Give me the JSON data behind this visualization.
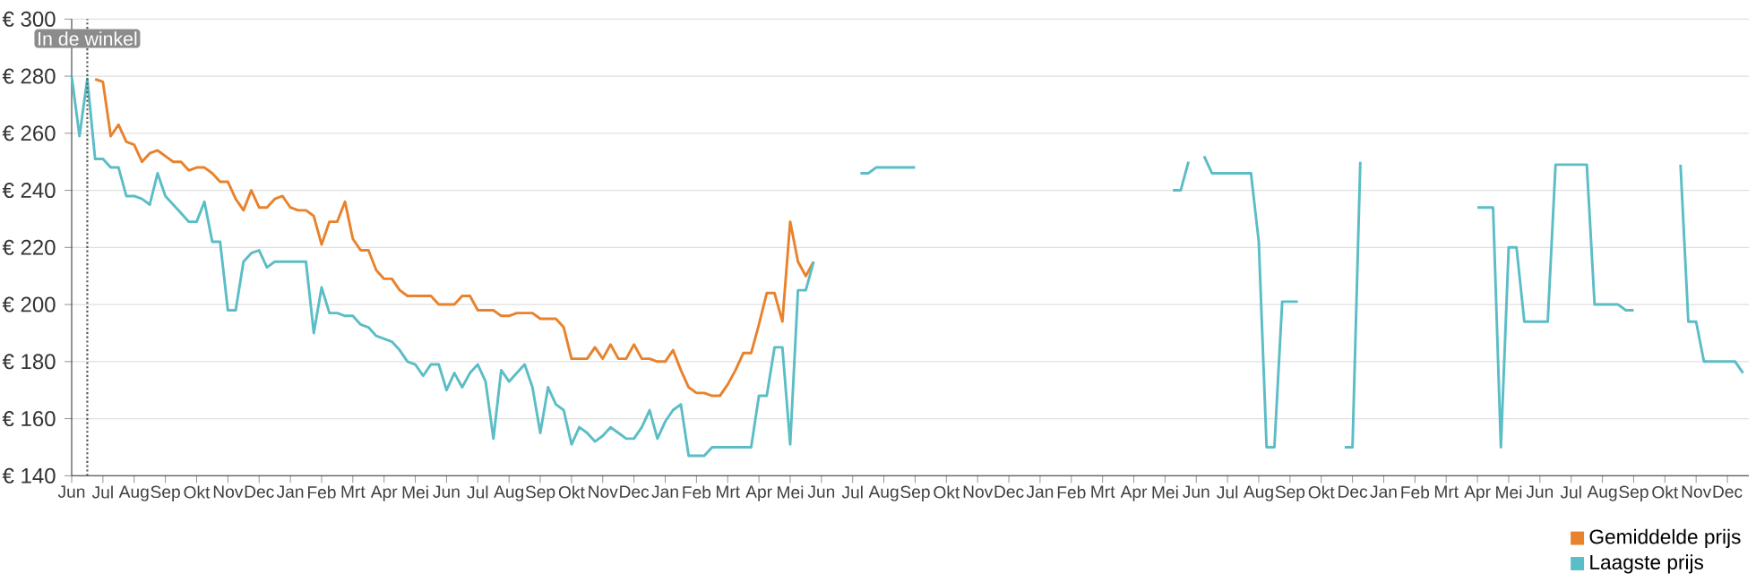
{
  "chart_data": {
    "type": "line",
    "categories": [
      "Jun",
      null,
      null,
      null,
      "Jul",
      null,
      null,
      null,
      "Aug",
      null,
      null,
      null,
      "Sep",
      null,
      null,
      null,
      "Okt",
      null,
      null,
      null,
      "Nov",
      null,
      null,
      null,
      "Dec",
      null,
      null,
      null,
      "Jan",
      null,
      null,
      null,
      "Feb",
      null,
      null,
      null,
      "Mrt",
      null,
      null,
      null,
      "Apr",
      null,
      null,
      null,
      "Mei",
      null,
      null,
      null,
      "Jun",
      null,
      null,
      null,
      "Jul",
      null,
      null,
      null,
      "Aug",
      null,
      null,
      null,
      "Sep",
      null,
      null,
      null,
      "Okt",
      null,
      null,
      null,
      "Nov",
      null,
      null,
      null,
      "Dec",
      null,
      null,
      null,
      "Jan",
      null,
      null,
      null,
      "Feb",
      null,
      null,
      null,
      "Mrt",
      null,
      null,
      null,
      "Apr",
      null,
      null,
      null,
      "Mei",
      null,
      null,
      null,
      "Jun",
      null,
      null,
      null,
      "Jul",
      null,
      null,
      null,
      "Aug",
      null,
      null,
      null,
      "Sep",
      null,
      null,
      null,
      "Okt",
      null,
      null,
      null,
      "Nov",
      null,
      null,
      null,
      "Dec",
      null,
      null,
      null,
      "Jan",
      null,
      null,
      null,
      "Feb",
      null,
      null,
      null,
      "Mrt",
      null,
      null,
      null,
      "Apr",
      null,
      null,
      null,
      "Mei",
      null,
      null,
      null,
      "Jun",
      null,
      null,
      null,
      "Jul",
      null,
      null,
      null,
      "Aug",
      null,
      null,
      null,
      "Sep",
      null,
      null,
      null,
      "Okt",
      null,
      null,
      null,
      "Dec",
      null,
      null,
      null,
      "Jan",
      null,
      null,
      null,
      "Feb",
      null,
      null,
      null,
      "Mrt",
      null,
      null,
      null,
      "Apr",
      null,
      null,
      null,
      "Mei",
      null,
      null,
      null,
      "Jun",
      null,
      null,
      null,
      "Jul",
      null,
      null,
      null,
      "Aug",
      null,
      null,
      null,
      "Sep",
      null,
      null,
      null,
      "Okt",
      null,
      null,
      null,
      "Nov",
      null,
      null,
      null,
      "Dec",
      null,
      null
    ],
    "ylim": [
      140,
      300
    ],
    "yticks": [
      {
        "value": 140,
        "label": "€ 140"
      },
      {
        "value": 160,
        "label": "€ 160"
      },
      {
        "value": 180,
        "label": "€ 180"
      },
      {
        "value": 200,
        "label": "€ 200"
      },
      {
        "value": 220,
        "label": "€ 220"
      },
      {
        "value": 240,
        "label": "€ 240"
      },
      {
        "value": 260,
        "label": "€ 260"
      },
      {
        "value": 280,
        "label": "€ 280"
      },
      {
        "value": 300,
        "label": "€ 300"
      }
    ],
    "grid": "y",
    "annotations": [
      "In de winkel"
    ],
    "legend": "bottom right",
    "series": [
      {
        "name": "Gemiddelde prijs",
        "color": "#e8822c",
        "values": [
          null,
          null,
          null,
          279,
          278,
          259,
          263,
          257,
          256,
          250,
          253,
          254,
          252,
          250,
          250,
          247,
          248,
          248,
          246,
          243,
          243,
          237,
          233,
          240,
          234,
          234,
          237,
          238,
          234,
          233,
          233,
          231,
          221,
          229,
          229,
          236,
          223,
          219,
          219,
          212,
          209,
          209,
          205,
          203,
          203,
          203,
          203,
          200,
          200,
          200,
          203,
          203,
          198,
          198,
          198,
          196,
          196,
          197,
          197,
          197,
          195,
          195,
          195,
          192,
          181,
          181,
          181,
          185,
          181,
          186,
          181,
          181,
          186,
          181,
          181,
          180,
          180,
          184,
          177,
          171,
          169,
          169,
          168,
          168,
          172,
          177,
          183,
          183,
          193,
          204,
          204,
          194,
          229,
          215,
          210,
          215,
          null,
          null,
          null,
          null,
          null,
          null,
          null,
          null,
          null,
          null,
          null,
          null,
          null,
          null,
          null,
          null,
          null,
          null,
          null,
          null,
          null,
          null,
          null,
          null,
          null,
          null,
          null,
          null,
          null,
          null,
          null,
          null,
          null,
          null,
          null,
          null,
          null,
          null,
          null,
          null,
          null,
          null,
          null,
          null,
          null,
          null,
          null,
          null,
          null,
          null,
          null,
          null,
          null,
          null,
          null,
          null,
          null,
          null,
          null,
          null,
          null,
          null,
          null,
          null,
          null,
          null,
          null,
          null,
          null,
          null,
          null,
          null,
          null,
          null,
          null,
          null,
          null,
          null,
          null,
          null,
          null,
          null,
          null,
          null,
          null,
          null,
          null,
          null,
          null,
          null,
          null,
          null,
          null,
          null,
          null,
          null,
          null,
          null,
          null,
          null,
          null,
          null,
          null,
          null,
          null,
          null,
          null,
          null,
          null,
          null,
          null,
          null,
          null,
          null,
          null,
          null,
          null,
          null,
          null
        ]
      },
      {
        "name": "Laagste prijs",
        "color": "#5bbdc6",
        "values": [
          280,
          259,
          279,
          251,
          251,
          248,
          248,
          238,
          238,
          237,
          235,
          246,
          238,
          235,
          232,
          229,
          229,
          236,
          222,
          222,
          198,
          198,
          215,
          218,
          219,
          213,
          215,
          215,
          215,
          215,
          215,
          190,
          206,
          197,
          197,
          196,
          196,
          193,
          192,
          189,
          188,
          187,
          184,
          180,
          179,
          175,
          179,
          179,
          170,
          176,
          171,
          176,
          179,
          173,
          153,
          177,
          173,
          176,
          179,
          171,
          155,
          171,
          165,
          163,
          151,
          157,
          155,
          152,
          154,
          157,
          155,
          153,
          153,
          157,
          163,
          153,
          159,
          163,
          165,
          147,
          147,
          147,
          150,
          150,
          150,
          150,
          150,
          150,
          168,
          168,
          185,
          185,
          151,
          205,
          205,
          215,
          null,
          null,
          null,
          null,
          null,
          246,
          246,
          248,
          248,
          248,
          248,
          248,
          248,
          null,
          null,
          null,
          null,
          null,
          null,
          null,
          null,
          null,
          null,
          null,
          null,
          null,
          null,
          null,
          null,
          null,
          null,
          null,
          null,
          null,
          null,
          null,
          null,
          null,
          null,
          null,
          null,
          null,
          null,
          null,
          null,
          240,
          240,
          250,
          null,
          252,
          246,
          246,
          246,
          246,
          246,
          246,
          222,
          150,
          150,
          201,
          201,
          201,
          null,
          null,
          null,
          null,
          null,
          150,
          150,
          250,
          null,
          null,
          null,
          null,
          null,
          null,
          null,
          null,
          null,
          null,
          null,
          null,
          null,
          null,
          234,
          234,
          234,
          150,
          220,
          220,
          194,
          194,
          194,
          194,
          249,
          249,
          249,
          249,
          249,
          200,
          200,
          200,
          200,
          198,
          198,
          null,
          null,
          null,
          null,
          null,
          249,
          194,
          194,
          180,
          180,
          180,
          180,
          180,
          176
        ]
      }
    ]
  }
}
